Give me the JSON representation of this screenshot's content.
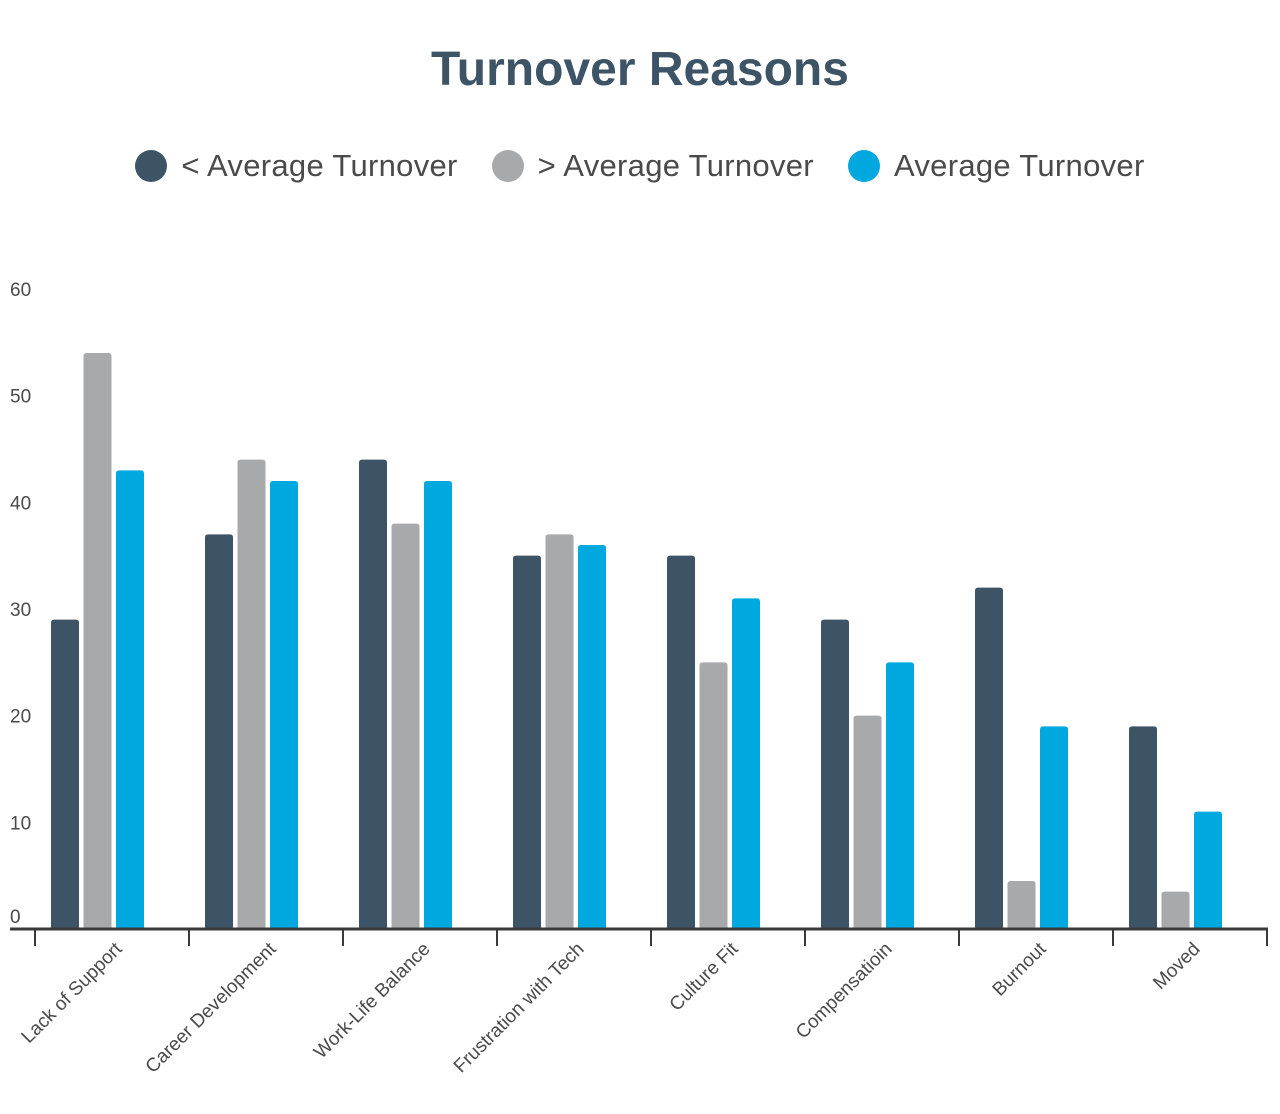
{
  "chart_data": {
    "type": "bar",
    "title": "Turnover Reasons",
    "xlabel": "",
    "ylabel": "",
    "ylim": [
      0,
      60
    ],
    "yticks": [
      "0",
      "10",
      "20",
      "30",
      "40",
      "50",
      "60"
    ],
    "grid": false,
    "legend_position": "top-center",
    "categories": [
      "Lack of Support",
      "Career Development",
      "Work-Life Balance",
      "Frustration with Tech",
      "Culture Fit",
      "Compensatioin",
      "Burnout",
      "Moved"
    ],
    "series": [
      {
        "name": "< Average Turnover",
        "color": "#3d5366",
        "values": [
          29,
          37,
          44,
          35,
          35,
          29,
          32,
          19
        ]
      },
      {
        "name": "> Average Turnover",
        "color": "#a8a9ab",
        "values": [
          54,
          44,
          38,
          37,
          25,
          20,
          4.5,
          3.5
        ]
      },
      {
        "name": "Average Turnover",
        "color": "#00a8e0",
        "values": [
          43,
          42,
          42,
          36,
          31,
          25,
          19,
          11
        ]
      }
    ]
  }
}
